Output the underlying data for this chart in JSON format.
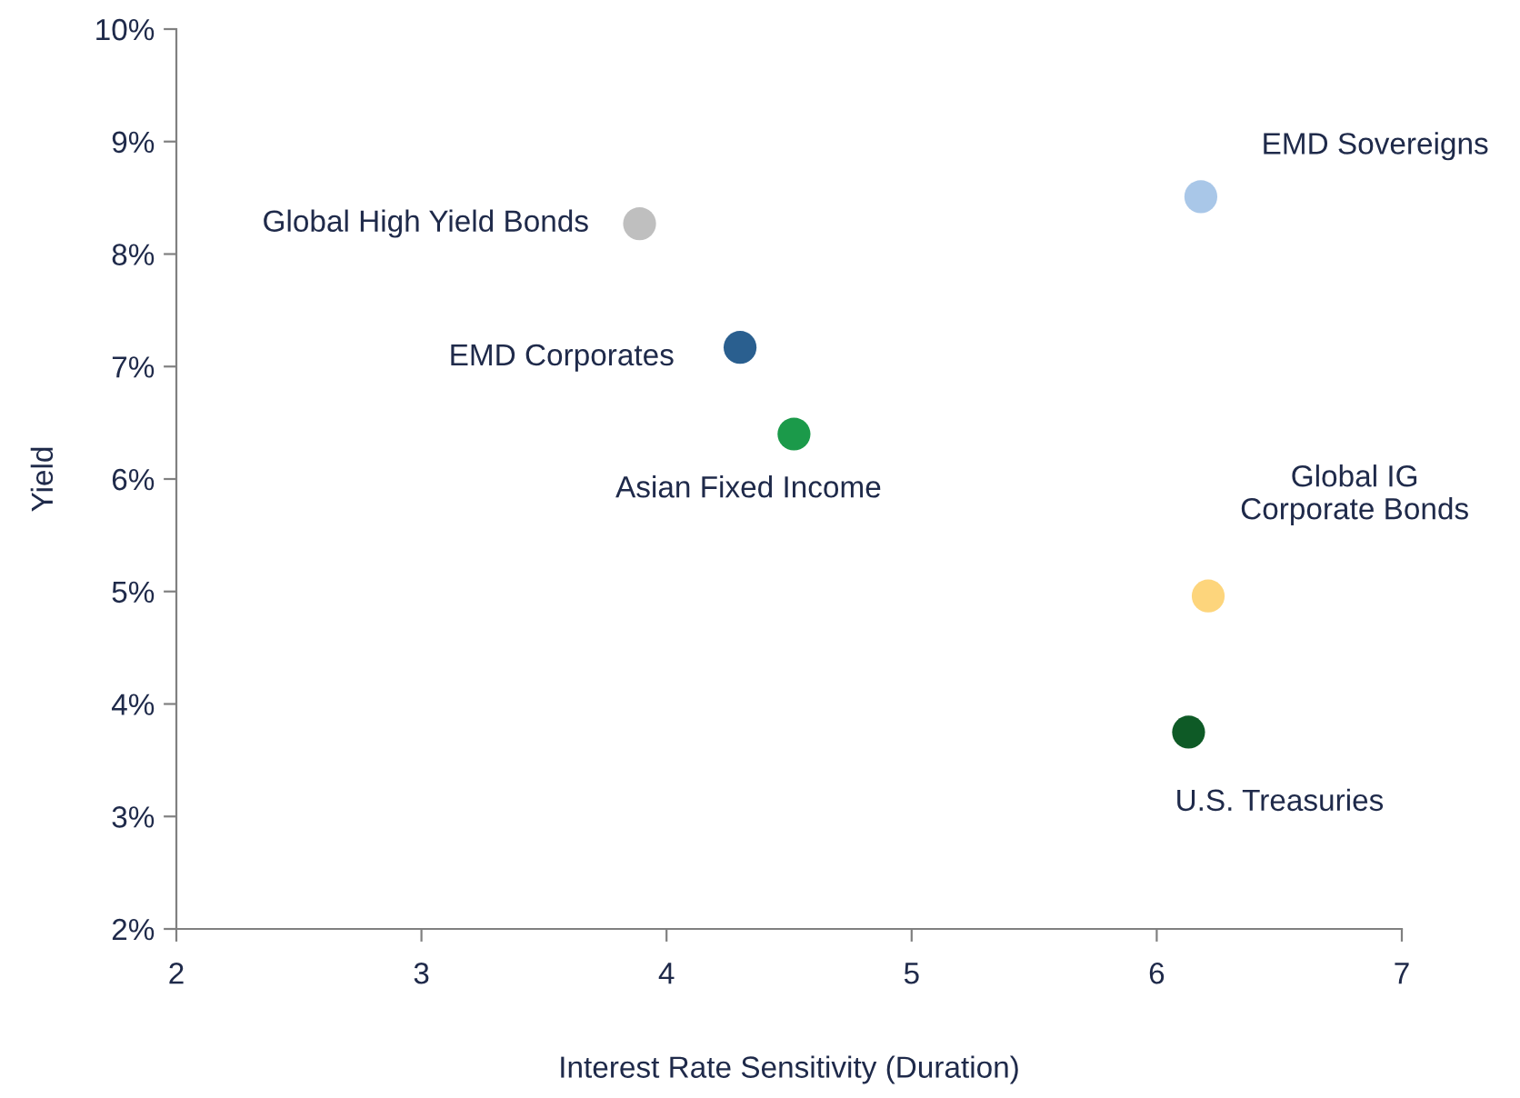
{
  "chart_data": {
    "type": "scatter",
    "xlabel": "Interest Rate Sensitivity (Duration)",
    "ylabel": "Yield",
    "x": [
      3.89,
      4.3,
      4.52,
      6.18,
      6.21,
      6.13
    ],
    "values": [
      8.27,
      7.17,
      6.4,
      8.51,
      4.96,
      3.75
    ],
    "colors": [
      "#bfbfbf",
      "#2a5f8f",
      "#1b9a4a",
      "#a9c7e8",
      "#fdd57c",
      "#0e5a26"
    ],
    "marker": "circle",
    "xlim": [
      2,
      7
    ],
    "xticks": [
      2,
      3,
      4,
      5,
      6,
      7
    ],
    "ylim": [
      2,
      10
    ],
    "yticks": [
      {
        "value": 2,
        "label": "2%"
      },
      {
        "value": 3,
        "label": "3%"
      },
      {
        "value": 4,
        "label": "4%"
      },
      {
        "value": 5,
        "label": "5%"
      },
      {
        "value": 6,
        "label": "6%"
      },
      {
        "value": 7,
        "label": "7%"
      },
      {
        "value": 8,
        "label": "8%"
      },
      {
        "value": 9,
        "label": "9%"
      },
      {
        "value": 10,
        "label": "10%"
      }
    ],
    "grid": false,
    "legend": false,
    "annotations": [
      {
        "text": "Global High Yield Bonds",
        "x": 3.89,
        "y": 8.27
      },
      {
        "text": "EMD Corporates",
        "x": 4.3,
        "y": 7.17
      },
      {
        "text": "Asian Fixed Income",
        "x": 4.52,
        "y": 6.4
      },
      {
        "text": "EMD Sovereigns",
        "x": 6.18,
        "y": 8.51
      },
      {
        "text": "Global IG\nCorporate Bonds",
        "x": 6.21,
        "y": 4.96
      },
      {
        "text": "U.S. Treasuries",
        "x": 6.13,
        "y": 3.75
      }
    ]
  }
}
